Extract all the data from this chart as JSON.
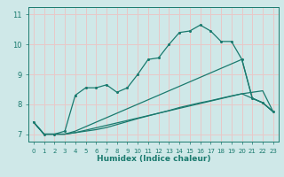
{
  "xlabel": "Humidex (Indice chaleur)",
  "bg_color": "#cfe8e8",
  "grid_color": "#e8c8c8",
  "line_color": "#1a7a6e",
  "xlim": [
    -0.5,
    23.5
  ],
  "ylim": [
    6.75,
    11.25
  ],
  "yticks": [
    7,
    8,
    9,
    10,
    11
  ],
  "xticks": [
    0,
    1,
    2,
    3,
    4,
    5,
    6,
    7,
    8,
    9,
    10,
    11,
    12,
    13,
    14,
    15,
    16,
    17,
    18,
    19,
    20,
    21,
    22,
    23
  ],
  "curve1_x": [
    0,
    1,
    2,
    3,
    4,
    5,
    6,
    7,
    8,
    9,
    10,
    11,
    12,
    13,
    14,
    15,
    16,
    17,
    18,
    19,
    20,
    21,
    22,
    23
  ],
  "curve1_y": [
    7.4,
    7.0,
    7.0,
    7.1,
    8.3,
    8.55,
    8.55,
    8.65,
    8.4,
    8.55,
    9.0,
    9.5,
    9.55,
    10.0,
    10.4,
    10.45,
    10.65,
    10.45,
    10.1,
    10.1,
    9.5,
    8.2,
    8.05,
    7.75
  ],
  "curve2_x": [
    0,
    1,
    2,
    3,
    4,
    5,
    6,
    7,
    8,
    9,
    10,
    11,
    12,
    13,
    14,
    15,
    16,
    17,
    18,
    19,
    20,
    21,
    22,
    23
  ],
  "curve2_y": [
    7.4,
    7.0,
    7.0,
    7.0,
    7.05,
    7.1,
    7.15,
    7.22,
    7.32,
    7.42,
    7.52,
    7.61,
    7.7,
    7.79,
    7.89,
    7.97,
    8.05,
    8.12,
    8.2,
    8.28,
    8.35,
    8.4,
    8.45,
    7.75
  ],
  "line3_x": [
    0,
    1,
    2,
    3,
    4,
    20,
    21,
    22,
    23
  ],
  "line3_y": [
    7.4,
    7.0,
    7.0,
    7.0,
    7.1,
    9.5,
    8.2,
    8.05,
    7.75
  ],
  "line4_x": [
    0,
    1,
    2,
    3,
    4,
    20,
    21,
    22,
    23
  ],
  "line4_y": [
    7.4,
    7.0,
    7.0,
    7.0,
    7.05,
    8.35,
    8.2,
    8.05,
    7.75
  ]
}
